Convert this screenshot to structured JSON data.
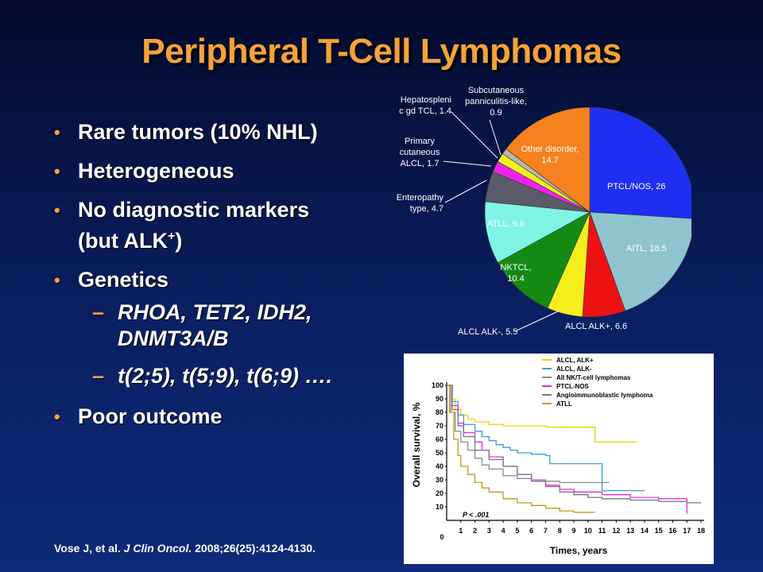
{
  "slide": {
    "title": "Peripheral T-Cell Lymphomas",
    "bullets": [
      {
        "text": "Rare tumors (10% NHL)"
      },
      {
        "text": "Heterogeneous"
      },
      {
        "text_line1": "No diagnostic markers",
        "text_line2_pre": "(but ALK",
        "sup": "+",
        "text_line2_post": ")"
      },
      {
        "text": "Genetics"
      },
      {
        "text": "Poor outcome"
      }
    ],
    "sub_bullets": [
      {
        "line1": "RHOA, TET2, IDH2,",
        "line2": "DNMT3A/B"
      },
      {
        "line1": "t(2;5), t(5;9), t(6;9) …."
      }
    ],
    "reference": {
      "authors": "Vose J, et al. ",
      "journal": "J Clin Oncol.",
      "details": " 2008;26(25):4124-4130."
    },
    "colors": {
      "title": "#f5a23a",
      "bullet": "#f5a23a"
    }
  },
  "chart_data": [
    {
      "type": "pie",
      "slices": [
        {
          "label": "PTCL/NOS, 26",
          "value": 26,
          "color": "#1f2ff2"
        },
        {
          "label": "AITL,  18.5",
          "value": 18.5,
          "color": "#8fc4ce"
        },
        {
          "label": "ALCL ALK+, 6.6",
          "value": 6.6,
          "color": "#ee1111"
        },
        {
          "label": "ALCL ALK-, 5.5",
          "value": 5.5,
          "color": "#f4ee1c"
        },
        {
          "label_line1": "NKTCL,",
          "label_line2": "10.4",
          "value": 10.4,
          "color": "#148a14"
        },
        {
          "label": "ATLL,  9.6",
          "value": 9.6,
          "color": "#7ff5e6"
        },
        {
          "label_line1": "Enteropathy",
          "label_line2": "type, 4.7",
          "value": 4.7,
          "color": "#5a5a68"
        },
        {
          "label_line1": "Primary",
          "label_line2": "cutaneous",
          "label_line3": "ALCL, 1.7",
          "value": 1.7,
          "color": "#ee22ee"
        },
        {
          "label_line1": "Hepatospleni",
          "label_line2": "c gd TCL,  1.4",
          "value": 1.4,
          "color": "#f4f01e"
        },
        {
          "label_line1": "Subcutaneous",
          "label_line2": "panniculitis-like,",
          "label_line3": "0.9",
          "value": 0.9,
          "color": "#b9b9a6"
        },
        {
          "label_line1": "Other disorder,",
          "label_line2": "14.7",
          "value": 14.7,
          "color": "#f5821f"
        }
      ]
    },
    {
      "type": "line",
      "ylabel": "Overall survival, %",
      "xlabel": "Times, years",
      "xlim": [
        0,
        18
      ],
      "ylim": [
        0,
        100
      ],
      "yticks": [
        10,
        20,
        30,
        40,
        50,
        60,
        70,
        80,
        90,
        100
      ],
      "xticks": [
        0,
        1,
        2,
        3,
        4,
        5,
        6,
        7,
        8,
        9,
        10,
        11,
        12,
        13,
        14,
        15,
        16,
        17,
        18
      ],
      "annotation": "P < .001",
      "series": [
        {
          "name": "ALCL, ALK+",
          "color": "#e8d800",
          "x": [
            0,
            0.3,
            0.6,
            1,
            1.5,
            2,
            3,
            4,
            7,
            10.5,
            10.5,
            13.5
          ],
          "y": [
            100,
            90,
            82,
            78,
            75,
            73,
            71,
            70,
            69,
            68,
            58,
            58
          ]
        },
        {
          "name": "ALCL, ALK-",
          "color": "#3a9fd6",
          "x": [
            0,
            0.4,
            0.8,
            1.2,
            2,
            2.5,
            3,
            3.5,
            4,
            4.5,
            5,
            6,
            7,
            7.3,
            8,
            11,
            11,
            14
          ],
          "y": [
            100,
            88,
            78,
            71,
            66,
            62,
            59,
            56,
            54,
            52,
            50,
            49,
            48,
            42,
            42,
            42,
            22,
            22
          ]
        },
        {
          "name": "All NK/T-cell lymphomas",
          "color": "#8c8c8c",
          "x": [
            0,
            0.3,
            0.6,
            1,
            1.5,
            2,
            2.5,
            3,
            4,
            5,
            6,
            8,
            10,
            11.5
          ],
          "y": [
            100,
            80,
            66,
            58,
            52,
            46,
            41,
            38,
            33,
            31,
            29,
            28,
            28,
            28
          ]
        },
        {
          "name": "PTCL-NOS",
          "color": "#e62ae0",
          "x": [
            0,
            0.4,
            0.8,
            1.2,
            2,
            2.5,
            3,
            4,
            5,
            6,
            7,
            8,
            9,
            11,
            13,
            15,
            17,
            17
          ],
          "y": [
            100,
            85,
            72,
            65,
            58,
            52,
            47,
            40,
            34,
            30,
            26,
            23,
            21,
            19,
            17,
            16,
            16,
            5
          ]
        },
        {
          "name": "Angioimmunoblastic lymphoma",
          "color": "#777788",
          "x": [
            0,
            0.4,
            0.8,
            1.2,
            2,
            3,
            4,
            5,
            6,
            7,
            8,
            9,
            10,
            11,
            13,
            15,
            17,
            18
          ],
          "y": [
            100,
            82,
            70,
            62,
            52,
            45,
            40,
            34,
            29,
            25,
            21,
            19,
            17,
            16,
            15,
            14,
            13,
            13
          ]
        },
        {
          "name": "ATLL",
          "color": "#c99a14",
          "x": [
            0,
            0.2,
            0.5,
            0.8,
            1,
            1.5,
            2,
            2.5,
            3,
            4,
            5,
            6,
            7,
            8,
            9,
            10.5
          ],
          "y": [
            100,
            80,
            60,
            48,
            40,
            34,
            28,
            24,
            21,
            16,
            13,
            11,
            9,
            7,
            6,
            6
          ]
        }
      ]
    }
  ]
}
